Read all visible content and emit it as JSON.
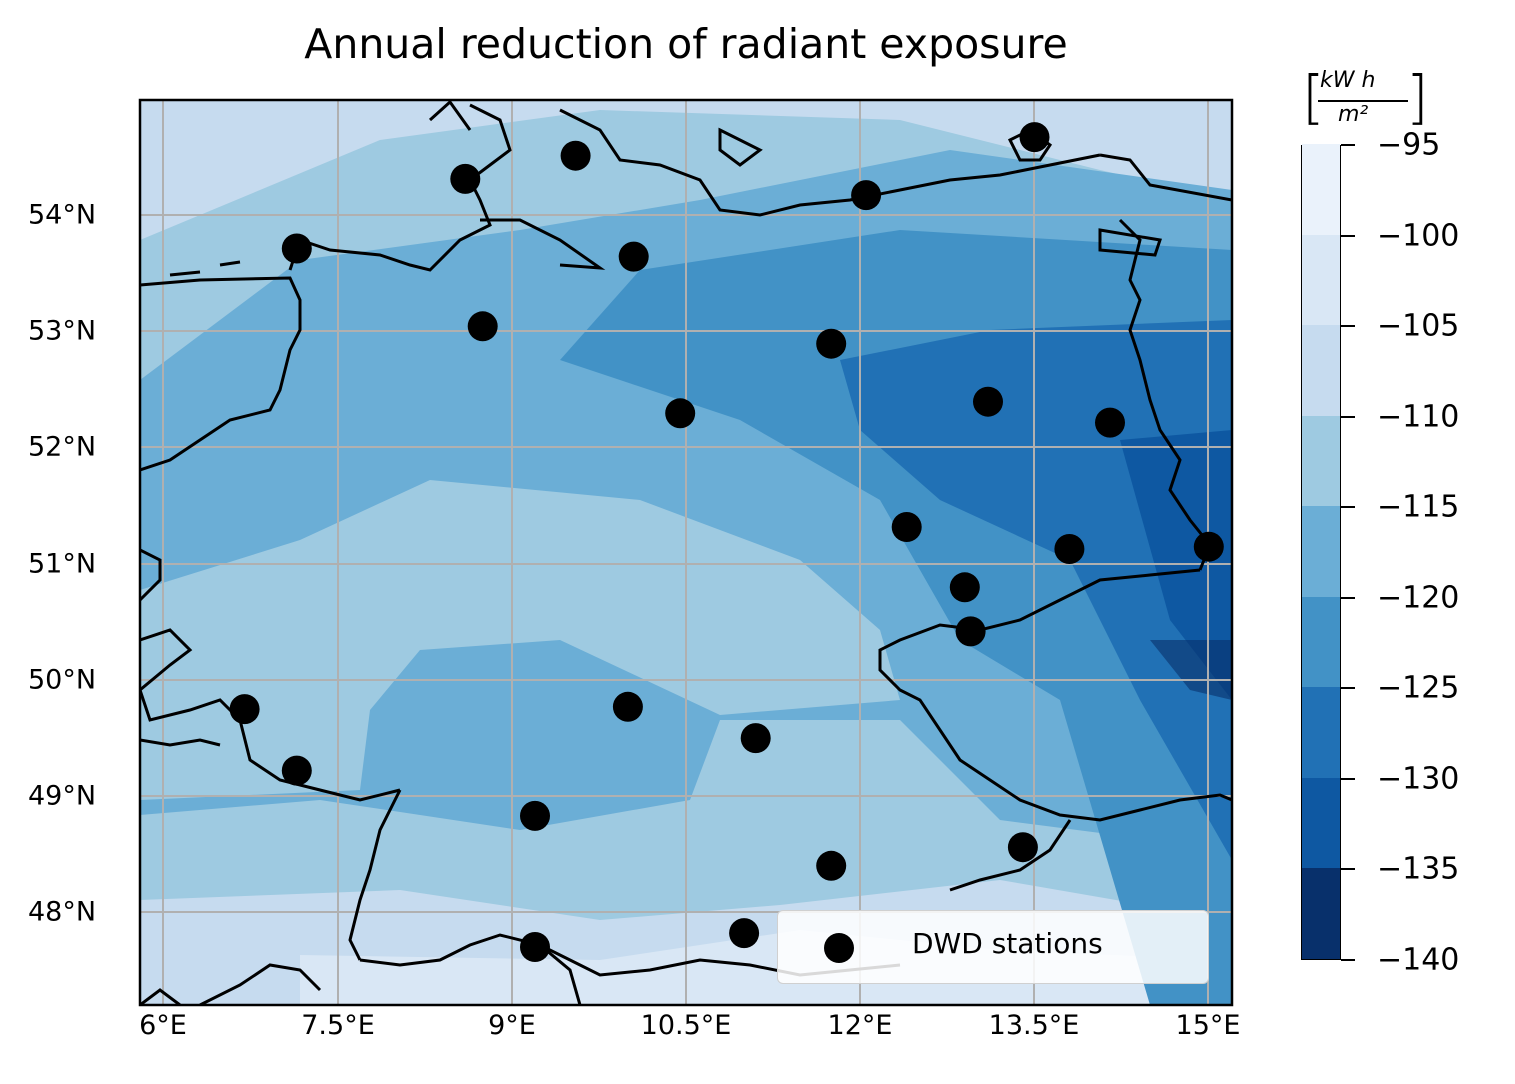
{
  "title": "Annual reduction of radiant exposure",
  "x_ticks": [
    "6°E",
    "7.5°E",
    "9°E",
    "10.5°E",
    "12°E",
    "13.5°E",
    "15°E"
  ],
  "y_ticks": [
    "54°N",
    "53°N",
    "52°N",
    "51°N",
    "50°N",
    "49°N",
    "48°N"
  ],
  "legend": {
    "label": "DWD stations"
  },
  "colorbar": {
    "unit_numerator": "kW h",
    "unit_denominator": "m²",
    "tick_labels": [
      "−95",
      "−100",
      "−105",
      "−110",
      "−115",
      "−120",
      "−125",
      "−130",
      "−135",
      "−140"
    ],
    "colors": [
      "#08306b",
      "#0e58a2",
      "#2171b5",
      "#4292c6",
      "#6baed6",
      "#9ecae1",
      "#c6dbef",
      "#d9e7f5",
      "#eaf2fb"
    ]
  },
  "chart_data": {
    "type": "scatter",
    "title": "Annual reduction of radiant exposure",
    "xlim": [
      5.8,
      15.2
    ],
    "ylim": [
      47.2,
      55.0
    ],
    "series": [
      {
        "name": "DWD stations",
        "x": [
          8.6,
          9.55,
          13.5,
          12.05,
          7.15,
          10.05,
          8.75,
          11.75,
          10.45,
          13.1,
          14.15,
          12.4,
          13.8,
          15.0,
          12.9,
          12.95,
          6.7,
          10.0,
          11.1,
          7.15,
          9.2,
          11.75,
          13.4,
          11.0,
          9.2
        ],
        "y": [
          54.32,
          54.52,
          54.68,
          54.18,
          53.72,
          53.65,
          53.05,
          52.9,
          52.3,
          52.4,
          52.22,
          51.32,
          51.13,
          51.15,
          50.8,
          50.42,
          49.75,
          49.77,
          49.5,
          49.22,
          48.83,
          48.4,
          48.56,
          47.82,
          47.7
        ]
      }
    ],
    "colorbar_range": [
      -140,
      -95
    ],
    "colorbar_step": 5,
    "grid": true,
    "legend_position": "lower-right"
  }
}
